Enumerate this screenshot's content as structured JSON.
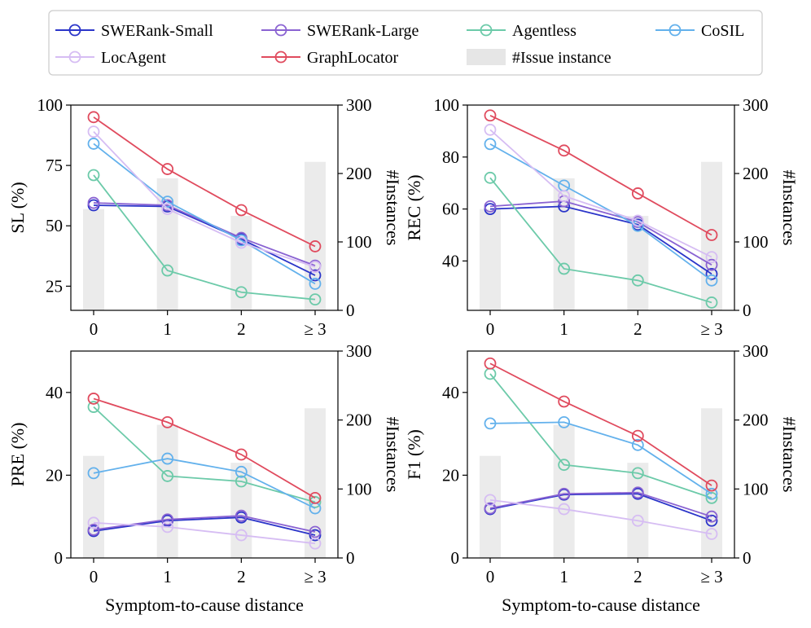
{
  "chart_data": {
    "type": "line",
    "legend": {
      "placement": "top",
      "entries": [
        {
          "label": "SWERank-Small",
          "color": "#2b35c9",
          "kind": "line"
        },
        {
          "label": "SWERank-Large",
          "color": "#8a63d2",
          "kind": "line"
        },
        {
          "label": "Agentless",
          "color": "#6ccaa9",
          "kind": "line"
        },
        {
          "label": "CoSIL",
          "color": "#63b1ec",
          "kind": "line"
        },
        {
          "label": "LocAgent",
          "color": "#d6bdf3",
          "kind": "line"
        },
        {
          "label": "GraphLocator",
          "color": "#e04b5e",
          "kind": "line"
        },
        {
          "label": "#Issue instance",
          "color": "#e6e6e6",
          "kind": "bar"
        }
      ]
    },
    "categories": [
      "0",
      "1",
      "2",
      "≥ 3"
    ],
    "shared_xlabel": "Symptom-to-cause distance",
    "instances": [
      148,
      193,
      138,
      217
    ],
    "instances_axis": {
      "label": "#Instances",
      "ylim": [
        0,
        300
      ],
      "ticks": [
        "0",
        "100",
        "200",
        "300"
      ]
    },
    "panels": [
      {
        "ylabel": "SL (%)",
        "ylim": [
          15,
          100
        ],
        "yticks": [
          25,
          50,
          75,
          100
        ],
        "ytick_labels": [
          "25",
          "50",
          "75",
          "100"
        ],
        "series": [
          {
            "name": "SWERank-Small",
            "values": [
              58.5,
              58,
              44.5,
              29.5
            ]
          },
          {
            "name": "SWERank-Large",
            "values": [
              59.5,
              58.5,
              45,
              33.5
            ]
          },
          {
            "name": "Agentless",
            "values": [
              71,
              31.5,
              22.5,
              19.5
            ]
          },
          {
            "name": "CoSIL",
            "values": [
              84,
              60,
              44,
              26
            ]
          },
          {
            "name": "LocAgent",
            "values": [
              89,
              57,
              43,
              33
            ]
          },
          {
            "name": "GraphLocator",
            "values": [
              95,
              73.5,
              56.5,
              41.5
            ]
          }
        ]
      },
      {
        "ylabel": "REC (%)",
        "ylim": [
          21,
          100
        ],
        "yticks": [
          40,
          60,
          80,
          100
        ],
        "ytick_labels": [
          "40",
          "60",
          "80",
          "100"
        ],
        "series": [
          {
            "name": "SWERank-Small",
            "values": [
              60,
              61,
              54,
              35
            ]
          },
          {
            "name": "SWERank-Large",
            "values": [
              61,
              63,
              55,
              38.5
            ]
          },
          {
            "name": "Agentless",
            "values": [
              72,
              37,
              32.5,
              24
            ]
          },
          {
            "name": "CoSIL",
            "values": [
              85,
              69,
              53.5,
              32.5
            ]
          },
          {
            "name": "LocAgent",
            "values": [
              90.5,
              65,
              55.5,
              41.5
            ]
          },
          {
            "name": "GraphLocator",
            "values": [
              96,
              82.5,
              66,
              50
            ]
          }
        ]
      },
      {
        "ylabel": "PRE (%)",
        "ylim": [
          0,
          50
        ],
        "yticks": [
          0,
          20,
          40
        ],
        "ytick_labels": [
          "0",
          "20",
          "40"
        ],
        "series": [
          {
            "name": "SWERank-Small",
            "values": [
              6.5,
              9,
              9.8,
              5.5
            ]
          },
          {
            "name": "SWERank-Large",
            "values": [
              6.8,
              9.3,
              10.2,
              6.3
            ]
          },
          {
            "name": "Agentless",
            "values": [
              36.5,
              19.8,
              18.5,
              13.5
            ]
          },
          {
            "name": "CoSIL",
            "values": [
              20.5,
              24,
              20.8,
              12
            ]
          },
          {
            "name": "LocAgent",
            "values": [
              8.5,
              7.5,
              5.5,
              3.5
            ]
          },
          {
            "name": "GraphLocator",
            "values": [
              38.5,
              32.8,
              25,
              14.5
            ]
          }
        ]
      },
      {
        "ylabel": "F1 (%)",
        "ylim": [
          0,
          50
        ],
        "yticks": [
          0,
          20,
          40
        ],
        "ytick_labels": [
          "0",
          "20",
          "40"
        ],
        "series": [
          {
            "name": "SWERank-Small",
            "values": [
              11.8,
              15.3,
              15.5,
              9
            ]
          },
          {
            "name": "SWERank-Large",
            "values": [
              12,
              15.5,
              15.8,
              10
            ]
          },
          {
            "name": "Agentless",
            "values": [
              44.5,
              22.5,
              20.5,
              14.5
            ]
          },
          {
            "name": "CoSIL",
            "values": [
              32.5,
              32.8,
              27.3,
              15.5
            ]
          },
          {
            "name": "LocAgent",
            "values": [
              14,
              11.8,
              9,
              5.8
            ]
          },
          {
            "name": "GraphLocator",
            "values": [
              47,
              37.8,
              29.5,
              17.5
            ]
          }
        ]
      }
    ]
  }
}
